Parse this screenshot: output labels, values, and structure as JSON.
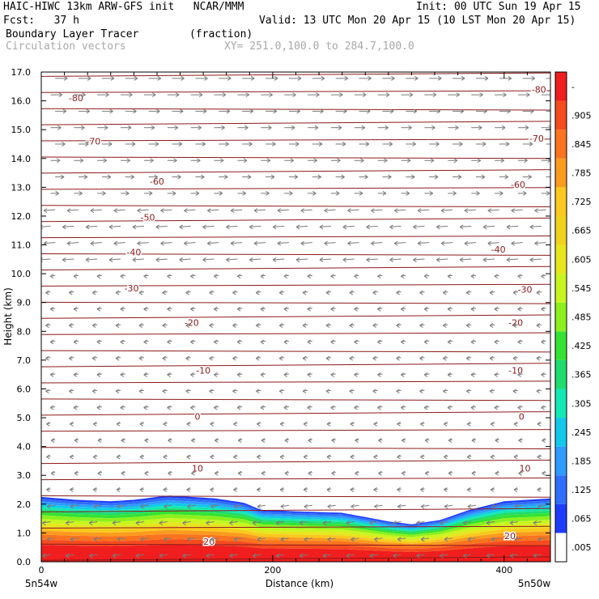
{
  "header": {
    "model_line": "HAIC-HIWC 13km ARW-GFS init   NCAR/MMM",
    "init_line": "Init: 00 UTC Sun 19 Apr 15",
    "fcst_line": "Fcst:   37 h",
    "valid_line": "Valid: 13 UTC Mon 20 Apr 15 (10 LST Mon 20 Apr 15)",
    "field_line": "Boundary Layer Tracer        (fraction)",
    "vector_line": "Circulation vectors",
    "xy_line": "XY= 251.0,100.0 to 284.7,100.0"
  },
  "chart_data": {
    "type": "heatmap",
    "title": "Boundary Layer Tracer",
    "units": "(fraction)",
    "xlabel": "Distance (km)",
    "ylabel": "Height (km)",
    "xlim": [
      0,
      440
    ],
    "ylim": [
      0,
      17
    ],
    "x_ticks": [
      0,
      200,
      400
    ],
    "y_ticks": [
      "0.0",
      "1.0",
      "2.0",
      "3.0",
      "4.0",
      "5.0",
      "6.0",
      "7.0",
      "8.0",
      "9.0",
      "10.0",
      "11.0",
      "12.0",
      "13.0",
      "14.0",
      "15.0",
      "16.0",
      "17.0"
    ],
    "x_end_labels": [
      "5n54w",
      "5n50w"
    ],
    "colorbar": {
      "labels": [
        ".005",
        ".065",
        ".125",
        ".185",
        ".245",
        ".305",
        ".365",
        ".425",
        ".485",
        ".545",
        ".605",
        ".665",
        ".725",
        ".785",
        ".845",
        ".905",
        "-"
      ],
      "colors": [
        "#ffffff",
        "#1e3cff",
        "#2f6eff",
        "#2e9bff",
        "#12c8e8",
        "#14e8b4",
        "#1edc6e",
        "#34e234",
        "#8cf01e",
        "#c8f51e",
        "#e6e61e",
        "#f0d21e",
        "#fac81e",
        "#fa9b1e",
        "#fa731e",
        "#f54b1e",
        "#f01e1e"
      ]
    },
    "pbl_top_km": [
      {
        "x": 0,
        "z": 2.25
      },
      {
        "x": 30,
        "z": 2.15
      },
      {
        "x": 60,
        "z": 2.1
      },
      {
        "x": 80,
        "z": 2.15
      },
      {
        "x": 110,
        "z": 2.3
      },
      {
        "x": 150,
        "z": 2.2
      },
      {
        "x": 175,
        "z": 2.05
      },
      {
        "x": 190,
        "z": 1.8
      },
      {
        "x": 220,
        "z": 1.75
      },
      {
        "x": 260,
        "z": 1.7
      },
      {
        "x": 300,
        "z": 1.4
      },
      {
        "x": 320,
        "z": 1.3
      },
      {
        "x": 345,
        "z": 1.45
      },
      {
        "x": 370,
        "z": 1.8
      },
      {
        "x": 400,
        "z": 2.1
      },
      {
        "x": 440,
        "z": 2.2
      }
    ],
    "isotherm_labels": [
      {
        "label": "-80",
        "x": 30,
        "z": 16.1
      },
      {
        "label": "-80",
        "x": 430,
        "z": 16.4
      },
      {
        "label": "-70",
        "x": 45,
        "z": 14.6
      },
      {
        "label": "-70",
        "x": 428,
        "z": 14.7
      },
      {
        "label": "-60",
        "x": 100,
        "z": 13.2
      },
      {
        "label": "-60",
        "x": 412,
        "z": 13.1
      },
      {
        "label": "-50",
        "x": 92,
        "z": 11.95
      },
      {
        "label": "-40",
        "x": 80,
        "z": 10.75
      },
      {
        "label": "-40",
        "x": 395,
        "z": 10.85
      },
      {
        "label": "-30",
        "x": 78,
        "z": 9.5
      },
      {
        "label": "-30",
        "x": 418,
        "z": 9.45
      },
      {
        "label": "-20",
        "x": 130,
        "z": 8.3
      },
      {
        "label": "-20",
        "x": 410,
        "z": 8.3
      },
      {
        "label": "-10",
        "x": 140,
        "z": 6.65
      },
      {
        "label": "-10",
        "x": 410,
        "z": 6.65
      },
      {
        "label": "0",
        "x": 135,
        "z": 5.05
      },
      {
        "label": "0",
        "x": 415,
        "z": 5.05
      },
      {
        "label": "10",
        "x": 135,
        "z": 3.25
      },
      {
        "label": "10",
        "x": 418,
        "z": 3.25
      },
      {
        "label": "20",
        "x": 145,
        "z": 0.7
      },
      {
        "label": "20",
        "x": 405,
        "z": 0.9
      }
    ]
  }
}
